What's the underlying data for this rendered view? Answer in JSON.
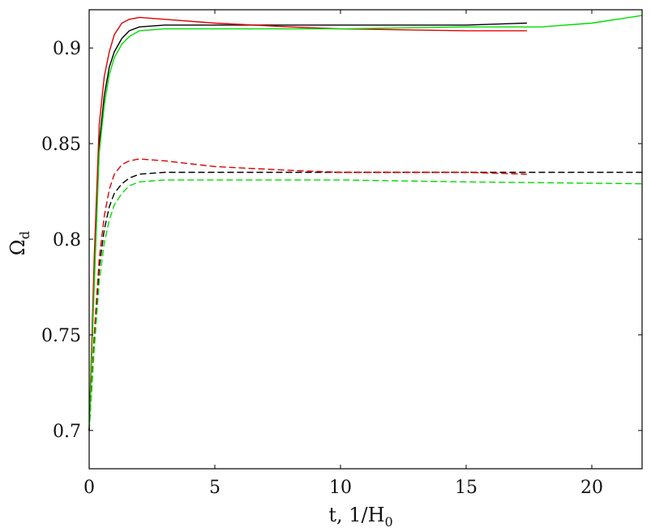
{
  "chart_data": {
    "type": "line",
    "xlabel": "t, 1/H",
    "xlabel_sub": "0",
    "ylabel": "Ω",
    "ylabel_sub": "d",
    "xlim": [
      0,
      22
    ],
    "ylim": [
      0.68,
      0.92
    ],
    "xticks": [
      0,
      5,
      10,
      15,
      20
    ],
    "yticks": [
      0.7,
      0.75,
      0.8,
      0.85,
      0.9
    ],
    "ytick_labels": [
      "0.7",
      "0.75",
      "0.8",
      "0.85",
      "0.9"
    ],
    "xtick_labels": [
      "0",
      "5",
      "10",
      "15",
      "20"
    ],
    "grid": false,
    "series": [
      {
        "color": "#000000",
        "style": "solid",
        "points": [
          [
            0,
            0.7
          ],
          [
            0.2,
            0.78
          ],
          [
            0.4,
            0.85
          ],
          [
            0.6,
            0.875
          ],
          [
            0.8,
            0.89
          ],
          [
            1.0,
            0.898
          ],
          [
            1.3,
            0.905
          ],
          [
            1.6,
            0.909
          ],
          [
            2.0,
            0.911
          ],
          [
            3.0,
            0.912
          ],
          [
            5.0,
            0.912
          ],
          [
            10.0,
            0.912
          ],
          [
            15.0,
            0.912
          ],
          [
            17.4,
            0.913
          ]
        ]
      },
      {
        "color": "#e00000",
        "style": "solid",
        "points": [
          [
            0,
            0.7
          ],
          [
            0.2,
            0.79
          ],
          [
            0.4,
            0.86
          ],
          [
            0.6,
            0.885
          ],
          [
            0.8,
            0.898
          ],
          [
            1.0,
            0.907
          ],
          [
            1.3,
            0.913
          ],
          [
            1.6,
            0.915
          ],
          [
            2.0,
            0.916
          ],
          [
            3.0,
            0.915
          ],
          [
            5.0,
            0.913
          ],
          [
            8.0,
            0.911
          ],
          [
            10.0,
            0.91
          ],
          [
            15.0,
            0.909
          ],
          [
            17.4,
            0.909
          ]
        ]
      },
      {
        "color": "#00dd00",
        "style": "solid",
        "points": [
          [
            0,
            0.7
          ],
          [
            0.2,
            0.775
          ],
          [
            0.4,
            0.845
          ],
          [
            0.6,
            0.87
          ],
          [
            0.8,
            0.886
          ],
          [
            1.0,
            0.895
          ],
          [
            1.3,
            0.902
          ],
          [
            1.6,
            0.906
          ],
          [
            2.0,
            0.909
          ],
          [
            3.0,
            0.91
          ],
          [
            5.0,
            0.91
          ],
          [
            10.0,
            0.91
          ],
          [
            15.0,
            0.911
          ],
          [
            18.0,
            0.911
          ],
          [
            20.0,
            0.913
          ],
          [
            22.0,
            0.917
          ]
        ]
      },
      {
        "color": "#000000",
        "style": "dashed",
        "points": [
          [
            0,
            0.7
          ],
          [
            0.2,
            0.745
          ],
          [
            0.4,
            0.785
          ],
          [
            0.6,
            0.805
          ],
          [
            0.8,
            0.817
          ],
          [
            1.0,
            0.824
          ],
          [
            1.3,
            0.829
          ],
          [
            1.6,
            0.832
          ],
          [
            2.0,
            0.834
          ],
          [
            3.0,
            0.835
          ],
          [
            5.0,
            0.835
          ],
          [
            10.0,
            0.835
          ],
          [
            15.0,
            0.835
          ],
          [
            22.0,
            0.835
          ]
        ]
      },
      {
        "color": "#e00000",
        "style": "dashed",
        "points": [
          [
            0,
            0.7
          ],
          [
            0.2,
            0.75
          ],
          [
            0.4,
            0.79
          ],
          [
            0.6,
            0.812
          ],
          [
            0.8,
            0.826
          ],
          [
            1.0,
            0.834
          ],
          [
            1.3,
            0.839
          ],
          [
            1.6,
            0.841
          ],
          [
            2.0,
            0.842
          ],
          [
            3.0,
            0.841
          ],
          [
            5.0,
            0.838
          ],
          [
            8.0,
            0.836
          ],
          [
            10.0,
            0.835
          ],
          [
            15.0,
            0.835
          ],
          [
            17.4,
            0.834
          ]
        ]
      },
      {
        "color": "#00dd00",
        "style": "dashed",
        "points": [
          [
            0,
            0.7
          ],
          [
            0.2,
            0.742
          ],
          [
            0.4,
            0.778
          ],
          [
            0.6,
            0.798
          ],
          [
            0.8,
            0.81
          ],
          [
            1.0,
            0.818
          ],
          [
            1.3,
            0.824
          ],
          [
            1.6,
            0.828
          ],
          [
            2.0,
            0.83
          ],
          [
            3.0,
            0.831
          ],
          [
            5.0,
            0.831
          ],
          [
            10.0,
            0.831
          ],
          [
            15.0,
            0.83
          ],
          [
            22.0,
            0.829
          ]
        ]
      }
    ]
  }
}
